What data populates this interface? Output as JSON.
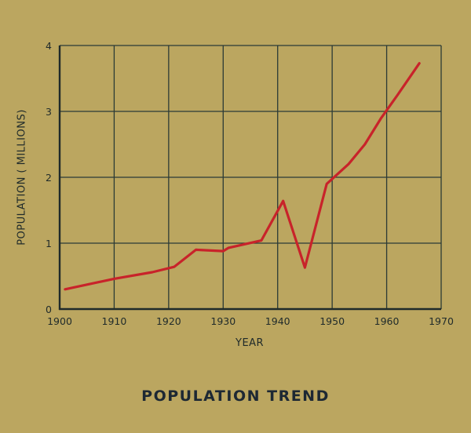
{
  "chart_data": {
    "type": "line",
    "title": "POPULATION TREND",
    "xlabel": "YEAR",
    "ylabel": "POPULATION ( MILLIONS)",
    "xlim": [
      1900,
      1970
    ],
    "ylim": [
      0,
      4
    ],
    "xticks": [
      1900,
      1910,
      1920,
      1930,
      1940,
      1950,
      1960,
      1970
    ],
    "yticks": [
      0,
      1,
      2,
      3,
      4
    ],
    "grid": true,
    "legend": null,
    "line_color": "#c8232a",
    "series": [
      {
        "name": "Population",
        "x": [
          1901,
          1910,
          1917,
          1921,
          1925,
          1930,
          1931,
          1937,
          1941,
          1945,
          1949,
          1953,
          1956,
          1959,
          1962,
          1966
        ],
        "values": [
          0.3,
          0.46,
          0.56,
          0.64,
          0.9,
          0.88,
          0.93,
          1.04,
          1.64,
          0.63,
          1.9,
          2.2,
          2.5,
          2.9,
          3.25,
          3.73
        ]
      }
    ]
  }
}
